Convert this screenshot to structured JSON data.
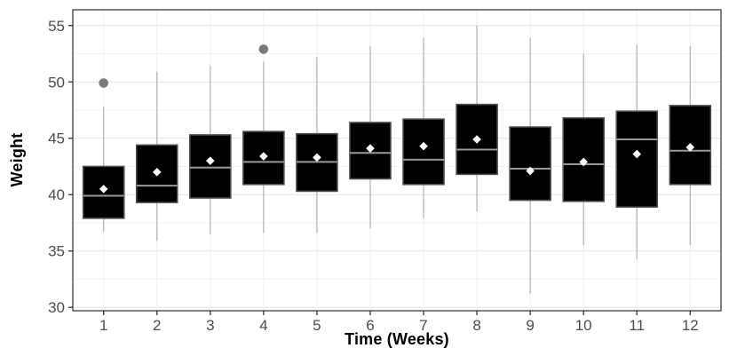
{
  "chart_data": {
    "type": "boxplot",
    "title": "",
    "xlabel": "Time (Weeks)",
    "ylabel": "Weight",
    "x_tick_labels": [
      "1",
      "2",
      "3",
      "4",
      "5",
      "6",
      "7",
      "8",
      "9",
      "10",
      "11",
      "12"
    ],
    "y_ticks": [
      30,
      35,
      40,
      45,
      50,
      55
    ],
    "y_minor_ticks": [
      32.5,
      37.5,
      42.5,
      47.5,
      52.5
    ],
    "ylim": [
      29.7,
      56.4
    ],
    "grid": "on",
    "legend": "none",
    "boxes": [
      {
        "week": "1",
        "whisker_low": 36.7,
        "q1": 37.9,
        "median": 39.9,
        "mean": 40.5,
        "q3": 42.5,
        "whisker_high": 47.8,
        "outliers": [
          49.9
        ]
      },
      {
        "week": "2",
        "whisker_low": 35.9,
        "q1": 39.3,
        "median": 40.8,
        "mean": 42.0,
        "q3": 44.4,
        "whisker_high": 50.9,
        "outliers": []
      },
      {
        "week": "3",
        "whisker_low": 36.5,
        "q1": 39.7,
        "median": 42.4,
        "mean": 43.0,
        "q3": 45.3,
        "whisker_high": 51.4,
        "outliers": []
      },
      {
        "week": "4",
        "whisker_low": 36.6,
        "q1": 40.9,
        "median": 42.9,
        "mean": 43.4,
        "q3": 45.6,
        "whisker_high": 51.8,
        "outliers": [
          52.9
        ]
      },
      {
        "week": "5",
        "whisker_low": 36.6,
        "q1": 40.3,
        "median": 42.9,
        "mean": 43.3,
        "q3": 45.4,
        "whisker_high": 52.2,
        "outliers": []
      },
      {
        "week": "6",
        "whisker_low": 37.0,
        "q1": 41.4,
        "median": 43.7,
        "mean": 44.1,
        "q3": 46.4,
        "whisker_high": 53.2,
        "outliers": []
      },
      {
        "week": "7",
        "whisker_low": 37.9,
        "q1": 40.9,
        "median": 43.1,
        "mean": 44.3,
        "q3": 46.7,
        "whisker_high": 53.9,
        "outliers": []
      },
      {
        "week": "8",
        "whisker_low": 38.5,
        "q1": 41.8,
        "median": 44.0,
        "mean": 44.9,
        "q3": 48.0,
        "whisker_high": 55.0,
        "outliers": []
      },
      {
        "week": "9",
        "whisker_low": 31.2,
        "q1": 39.5,
        "median": 42.3,
        "mean": 42.1,
        "q3": 46.0,
        "whisker_high": 53.9,
        "outliers": []
      },
      {
        "week": "10",
        "whisker_low": 35.5,
        "q1": 39.4,
        "median": 42.7,
        "mean": 42.9,
        "q3": 46.8,
        "whisker_high": 52.5,
        "outliers": []
      },
      {
        "week": "11",
        "whisker_low": 34.3,
        "q1": 38.9,
        "median": 44.9,
        "mean": 43.6,
        "q3": 47.4,
        "whisker_high": 53.3,
        "outliers": []
      },
      {
        "week": "12",
        "whisker_low": 35.5,
        "q1": 40.9,
        "median": 43.9,
        "mean": 44.2,
        "q3": 47.9,
        "whisker_high": 53.2,
        "outliers": []
      }
    ],
    "colors": {
      "box_fill": "#000000",
      "box_border": "#4d4d4d",
      "median_line": "#9a9a9a",
      "mean_marker": "#ffffff",
      "whisker": "#b0b0b0",
      "outlier": "#7a7a7a",
      "grid_major": "#e4e4e4",
      "grid_minor": "#f2f2f2",
      "grid_vertical": "#f0f0f0",
      "panel_border": "#3c3c3c",
      "tick_mark": "#333333",
      "tick_label": "#4d4d4d",
      "axis_title": "#000000",
      "background": "#ffffff"
    }
  }
}
